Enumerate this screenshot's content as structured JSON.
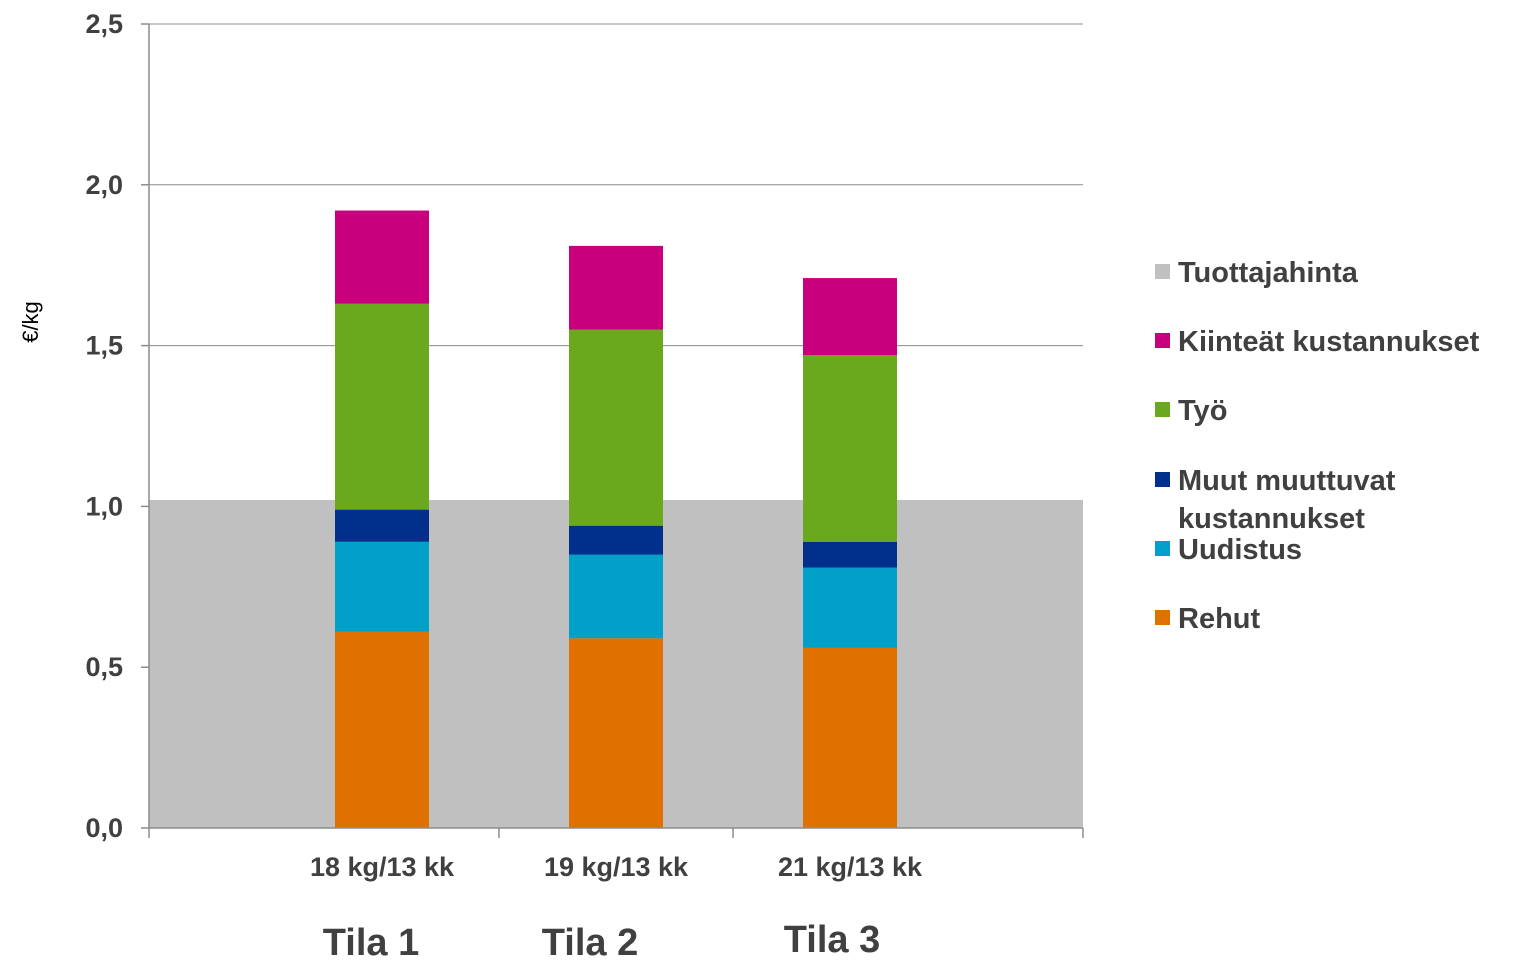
{
  "chart_data": {
    "type": "bar",
    "stacked": true,
    "ylabel": "€/kg",
    "ylim": [
      0,
      2.5
    ],
    "yticks": [
      "0,0",
      "0,5",
      "1,0",
      "1,5",
      "2,0",
      "2,5"
    ],
    "grid": true,
    "legend_position": "right",
    "categories": [
      "18 kg/13 kk",
      "19 kg/13 kk",
      "21 kg/13 kk"
    ],
    "groups": [
      "Tila 1",
      "Tila 2",
      "Tila 3"
    ],
    "reference_band": {
      "name": "Tuottajahinta",
      "value": 1.02,
      "color": "#c0c0c0"
    },
    "series": [
      {
        "name": "Rehut",
        "color": "#e07000",
        "values": [
          0.61,
          0.59,
          0.56
        ]
      },
      {
        "name": "Uudistus",
        "color": "#00a0c8",
        "values": [
          0.28,
          0.26,
          0.25
        ]
      },
      {
        "name": "Muut muuttuvat kustannukset",
        "color": "#00308c",
        "values": [
          0.1,
          0.09,
          0.08
        ]
      },
      {
        "name": "Työ",
        "color": "#6aa81e",
        "values": [
          0.64,
          0.61,
          0.58
        ]
      },
      {
        "name": "Kiinteät kustannukset",
        "color": "#c8007e",
        "values": [
          0.29,
          0.26,
          0.24
        ]
      }
    ],
    "legend": [
      {
        "name": "Tuottajahinta",
        "color": "#c0c0c0",
        "lines": [
          "Tuottajahinta"
        ]
      },
      {
        "name": "Kiinteät kustannukset",
        "color": "#c8007e",
        "lines": [
          "Kiinteät kustannukset"
        ]
      },
      {
        "name": "Työ",
        "color": "#6aa81e",
        "lines": [
          "Työ"
        ]
      },
      {
        "name": "Muut muuttuvat kustannukset",
        "color": "#00308c",
        "lines": [
          "Muut muuttuvat",
          "kustannukset"
        ]
      },
      {
        "name": "Uudistus",
        "color": "#00a0c8",
        "lines": [
          "Uudistus"
        ]
      },
      {
        "name": "Rehut",
        "color": "#e07000",
        "lines": [
          "Rehut"
        ]
      }
    ]
  }
}
